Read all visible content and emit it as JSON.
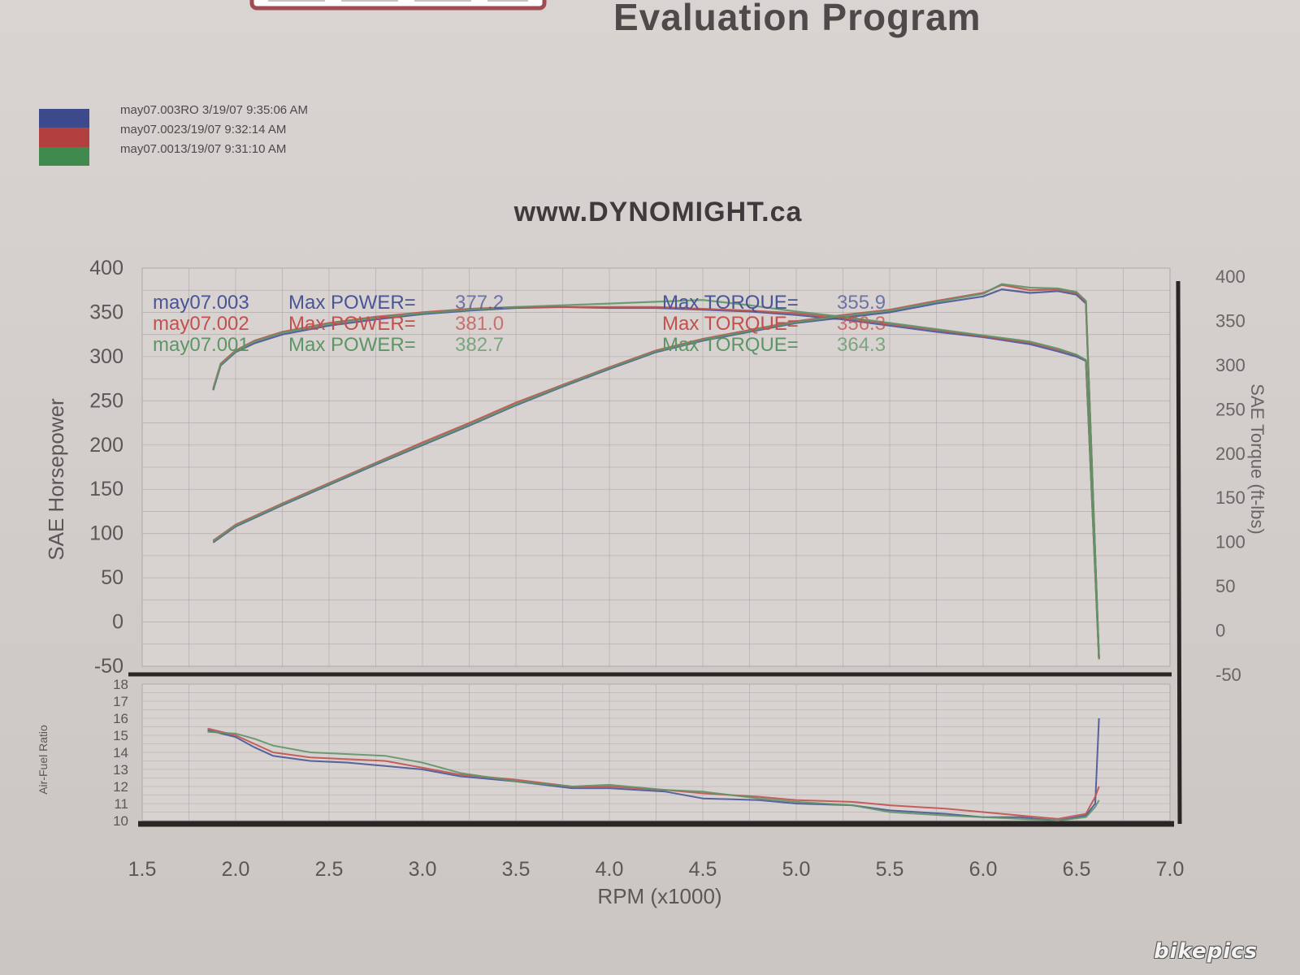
{
  "header": {
    "program_title": "Evaluation Program",
    "site_title": "www.DYNOMIGHT.ca"
  },
  "legend": {
    "runs": [
      {
        "label": "may07.003RO  3/19/07 9:35:06 AM",
        "color": "#3c4a8c"
      },
      {
        "label": "may07.0023/19/07 9:32:14 AM",
        "color": "#b2403e"
      },
      {
        "label": "may07.0013/19/07 9:31:10 AM",
        "color": "#3f8a4c"
      }
    ]
  },
  "watermark": "bikepics",
  "colors": {
    "run3": "#4a5596",
    "run2": "#c2514e",
    "run1": "#5e9566",
    "grid": "#aaa5a5",
    "axis": "#2b2626"
  },
  "chart_data": [
    {
      "type": "line",
      "title": "www.DYNOMIGHT.ca",
      "ylabel": "SAE Horsepower",
      "y2label": "SAE Torque (ft-lbs)",
      "xlim": [
        1.5,
        7.0
      ],
      "ylim": [
        -50,
        400
      ],
      "y2lim": [
        -50,
        400
      ],
      "xticks": [
        "1.5",
        "2.0",
        "2.5",
        "3.0",
        "3.5",
        "4.0",
        "4.5",
        "5.0",
        "5.5",
        "6.0",
        "6.5",
        "7.0"
      ],
      "yticks": [
        "400",
        "350",
        "300",
        "250",
        "200",
        "150",
        "100",
        "50",
        "0",
        "-50"
      ],
      "y2ticks": [
        "400",
        "350",
        "300",
        "250",
        "200",
        "150",
        "100",
        "50",
        "0",
        "-50"
      ],
      "grid": true,
      "annotations": [
        {
          "run": "may07.003",
          "power_text": "Max POWER=",
          "power_value": "377.2",
          "torque_text": "Max TORQUE=",
          "torque_value": "355.9"
        },
        {
          "run": "may07.002",
          "power_text": "Max POWER=",
          "power_value": "381.0",
          "torque_text": "Max TORQUE=",
          "torque_value": "356.3"
        },
        {
          "run": "may07.001",
          "power_text": "Max POWER=",
          "power_value": "382.7",
          "torque_text": "Max TORQUE=",
          "torque_value": "364.3"
        }
      ],
      "series": [
        {
          "name": "may07.003",
          "kind": "power",
          "x": [
            1.88,
            2.0,
            2.25,
            2.5,
            2.75,
            3.0,
            3.25,
            3.5,
            3.75,
            4.0,
            4.25,
            4.5,
            4.75,
            5.0,
            5.25,
            5.5,
            5.75,
            6.0,
            6.1,
            6.25,
            6.4,
            6.5,
            6.55,
            6.62
          ],
          "y": [
            90,
            108,
            132,
            155,
            178,
            200,
            222,
            245,
            266,
            286,
            305,
            318,
            328,
            338,
            344,
            350,
            360,
            368,
            376,
            372,
            374,
            370,
            360,
            -40
          ]
        },
        {
          "name": "may07.003",
          "kind": "torque",
          "x": [
            1.88,
            1.92,
            2.0,
            2.1,
            2.25,
            2.5,
            2.75,
            3.0,
            3.25,
            3.5,
            3.75,
            4.0,
            4.25,
            4.5,
            4.75,
            5.0,
            5.25,
            5.5,
            5.75,
            6.0,
            6.25,
            6.4,
            6.5,
            6.55,
            6.62
          ],
          "y": [
            262,
            290,
            305,
            315,
            325,
            335,
            342,
            348,
            352,
            355,
            356,
            355,
            355,
            353,
            351,
            347,
            342,
            335,
            328,
            322,
            314,
            306,
            300,
            295,
            -40
          ]
        },
        {
          "name": "may07.002",
          "kind": "power",
          "x": [
            1.88,
            2.0,
            2.25,
            2.5,
            2.75,
            3.0,
            3.25,
            3.5,
            3.75,
            4.0,
            4.25,
            4.5,
            4.75,
            5.0,
            5.25,
            5.5,
            5.75,
            6.0,
            6.1,
            6.25,
            6.4,
            6.5,
            6.55,
            6.62
          ],
          "y": [
            92,
            110,
            134,
            157,
            180,
            203,
            225,
            248,
            268,
            288,
            307,
            320,
            330,
            340,
            347,
            353,
            363,
            372,
            381,
            375,
            376,
            372,
            362,
            -42
          ]
        },
        {
          "name": "may07.002",
          "kind": "torque",
          "x": [
            1.88,
            1.92,
            2.0,
            2.1,
            2.25,
            2.5,
            2.75,
            3.0,
            3.25,
            3.5,
            3.75,
            4.0,
            4.25,
            4.5,
            4.75,
            5.0,
            5.25,
            5.5,
            5.75,
            6.0,
            6.25,
            6.4,
            6.5,
            6.55,
            6.62
          ],
          "y": [
            264,
            292,
            307,
            318,
            328,
            338,
            345,
            350,
            354,
            356,
            356,
            356,
            356,
            354,
            352,
            349,
            344,
            337,
            330,
            323,
            316,
            308,
            302,
            296,
            -42
          ]
        },
        {
          "name": "may07.001",
          "kind": "power",
          "x": [
            1.88,
            2.0,
            2.25,
            2.5,
            2.75,
            3.0,
            3.25,
            3.5,
            3.75,
            4.0,
            4.25,
            4.5,
            4.75,
            5.0,
            5.25,
            5.5,
            5.75,
            6.0,
            6.1,
            6.25,
            6.4,
            6.5,
            6.55,
            6.62
          ],
          "y": [
            91,
            109,
            133,
            156,
            179,
            201,
            223,
            246,
            267,
            287,
            306,
            319,
            329,
            339,
            346,
            352,
            362,
            371,
            382,
            378,
            377,
            373,
            363,
            -41
          ]
        },
        {
          "name": "may07.001",
          "kind": "torque",
          "x": [
            1.88,
            1.92,
            2.0,
            2.1,
            2.25,
            2.5,
            2.75,
            3.0,
            3.25,
            3.5,
            3.75,
            4.0,
            4.25,
            4.5,
            4.75,
            5.0,
            5.25,
            5.5,
            5.75,
            6.0,
            6.25,
            6.4,
            6.5,
            6.55,
            6.62
          ],
          "y": [
            263,
            291,
            306,
            317,
            327,
            337,
            344,
            349,
            353,
            356,
            358,
            360,
            362,
            364,
            358,
            351,
            345,
            338,
            331,
            324,
            317,
            309,
            302,
            296,
            -41
          ]
        }
      ]
    },
    {
      "type": "line",
      "ylabel": "Air-Fuel Ratio",
      "xlabel": "RPM (x1000)",
      "xlim": [
        1.5,
        7.0
      ],
      "ylim": [
        10,
        18
      ],
      "yticks": [
        "18",
        "17",
        "16",
        "15",
        "14",
        "13",
        "12",
        "11",
        "10"
      ],
      "grid": true,
      "series": [
        {
          "name": "may07.003",
          "x": [
            1.85,
            2.0,
            2.1,
            2.2,
            2.4,
            2.6,
            2.8,
            3.0,
            3.2,
            3.5,
            3.8,
            4.0,
            4.3,
            4.5,
            4.8,
            5.0,
            5.3,
            5.5,
            5.8,
            6.0,
            6.2,
            6.4,
            6.55,
            6.6,
            6.62
          ],
          "y": [
            15.3,
            14.9,
            14.3,
            13.8,
            13.5,
            13.4,
            13.2,
            13.0,
            12.6,
            12.3,
            11.9,
            11.9,
            11.7,
            11.3,
            11.2,
            11.0,
            10.9,
            10.6,
            10.4,
            10.2,
            10.2,
            10.0,
            10.3,
            11.0,
            16.0
          ]
        },
        {
          "name": "may07.002",
          "x": [
            1.85,
            2.0,
            2.1,
            2.2,
            2.4,
            2.6,
            2.8,
            3.0,
            3.2,
            3.5,
            3.8,
            4.0,
            4.3,
            4.5,
            4.8,
            5.0,
            5.3,
            5.5,
            5.8,
            6.0,
            6.2,
            6.4,
            6.55,
            6.6,
            6.62
          ],
          "y": [
            15.4,
            15.0,
            14.5,
            14.0,
            13.7,
            13.6,
            13.5,
            13.1,
            12.7,
            12.4,
            12.0,
            12.0,
            11.8,
            11.6,
            11.4,
            11.2,
            11.1,
            10.9,
            10.7,
            10.5,
            10.3,
            10.1,
            10.4,
            11.4,
            12.0
          ]
        },
        {
          "name": "may07.001",
          "x": [
            1.85,
            2.0,
            2.1,
            2.2,
            2.4,
            2.6,
            2.8,
            3.0,
            3.2,
            3.5,
            3.8,
            4.0,
            4.3,
            4.5,
            4.8,
            5.0,
            5.3,
            5.5,
            5.8,
            6.0,
            6.2,
            6.4,
            6.55,
            6.6,
            6.62
          ],
          "y": [
            15.2,
            15.1,
            14.8,
            14.4,
            14.0,
            13.9,
            13.8,
            13.4,
            12.8,
            12.3,
            12.0,
            12.1,
            11.8,
            11.7,
            11.3,
            11.1,
            10.9,
            10.5,
            10.3,
            10.2,
            10.1,
            10.0,
            10.2,
            10.8,
            11.2
          ]
        }
      ]
    }
  ]
}
